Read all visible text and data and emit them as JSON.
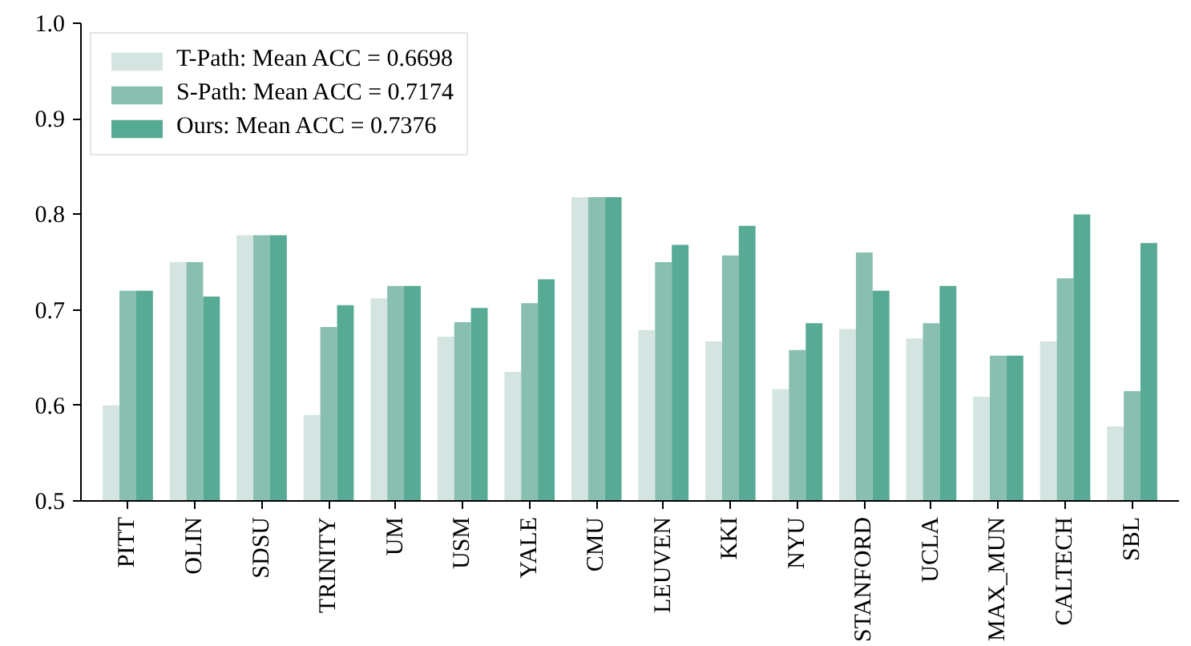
{
  "chart_data": {
    "type": "bar",
    "categories": [
      "PITT",
      "OLIN",
      "SDSU",
      "TRINITY",
      "UM",
      "USM",
      "YALE",
      "CMU",
      "LEUVEN",
      "KKI",
      "NYU",
      "STANFORD",
      "UCLA",
      "MAX_MUN",
      "CALTECH",
      "SBL"
    ],
    "series": [
      {
        "name": "T-Path: Mean ACC = 0.6698",
        "color": "#d4e5e1",
        "values": [
          0.6,
          0.75,
          0.778,
          0.59,
          0.712,
          0.672,
          0.635,
          0.818,
          0.679,
          0.667,
          0.617,
          0.68,
          0.67,
          0.609,
          0.667,
          0.578
        ]
      },
      {
        "name": "S-Path: Mean ACC = 0.7174",
        "color": "#88bfb0",
        "values": [
          0.72,
          0.75,
          0.778,
          0.682,
          0.725,
          0.687,
          0.707,
          0.818,
          0.75,
          0.757,
          0.658,
          0.76,
          0.686,
          0.652,
          0.733,
          0.615
        ]
      },
      {
        "name": "Ours: Mean ACC = 0.7376",
        "color": "#57aa94",
        "values": [
          0.72,
          0.714,
          0.778,
          0.705,
          0.725,
          0.702,
          0.732,
          0.818,
          0.768,
          0.788,
          0.686,
          0.72,
          0.725,
          0.652,
          0.8,
          0.77
        ]
      }
    ],
    "ylim": [
      0.5,
      1.0
    ],
    "yticks": [
      {
        "value": 0.5,
        "label": "0.5"
      },
      {
        "value": 0.6,
        "label": "0.6"
      },
      {
        "value": 0.7,
        "label": "0.7"
      },
      {
        "value": 0.8,
        "label": "0.8"
      },
      {
        "value": 0.9,
        "label": "0.9"
      },
      {
        "value": 1.0,
        "label": "1.0"
      }
    ],
    "grid": false,
    "legend": "top left"
  }
}
